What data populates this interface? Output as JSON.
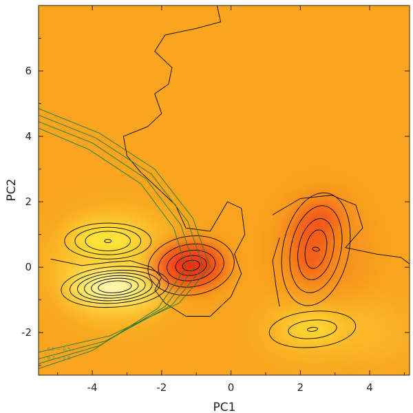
{
  "chart_data": {
    "type": "heatmap",
    "title": "",
    "xlabel": "PC1",
    "ylabel": "PC2",
    "xlim": [
      -5.55,
      5.15
    ],
    "ylim": [
      -3.3,
      8.0
    ],
    "xticks": [
      -4,
      -2,
      0,
      2,
      4
    ],
    "yticks": [
      -2,
      0,
      2,
      4,
      6
    ],
    "grid": false,
    "colors": {
      "background": "#F9A51F",
      "density_low": "#F9A51F",
      "density_mid": "#FFE23A",
      "density_high": "#FFFCE0",
      "density_red": "#F41E14",
      "contour_line": "#000000",
      "overlay_line": "#2E7D32"
    },
    "density_peaks": [
      {
        "x": -3.45,
        "y": -0.6,
        "level": "highest",
        "color": "pale-yellow"
      },
      {
        "x": -3.6,
        "y": 0.8,
        "level": "high",
        "color": "yellow"
      },
      {
        "x": -1.15,
        "y": 0.05,
        "level": "high",
        "color": "red"
      },
      {
        "x": 2.4,
        "y": 0.55,
        "level": "medium",
        "color": "red-orange"
      },
      {
        "x": 2.3,
        "y": -1.8,
        "level": "medium",
        "color": "yellow"
      }
    ],
    "overlay_contour_labels": [
      "0.5 — 0.5",
      "0.7 — 0.9"
    ]
  }
}
